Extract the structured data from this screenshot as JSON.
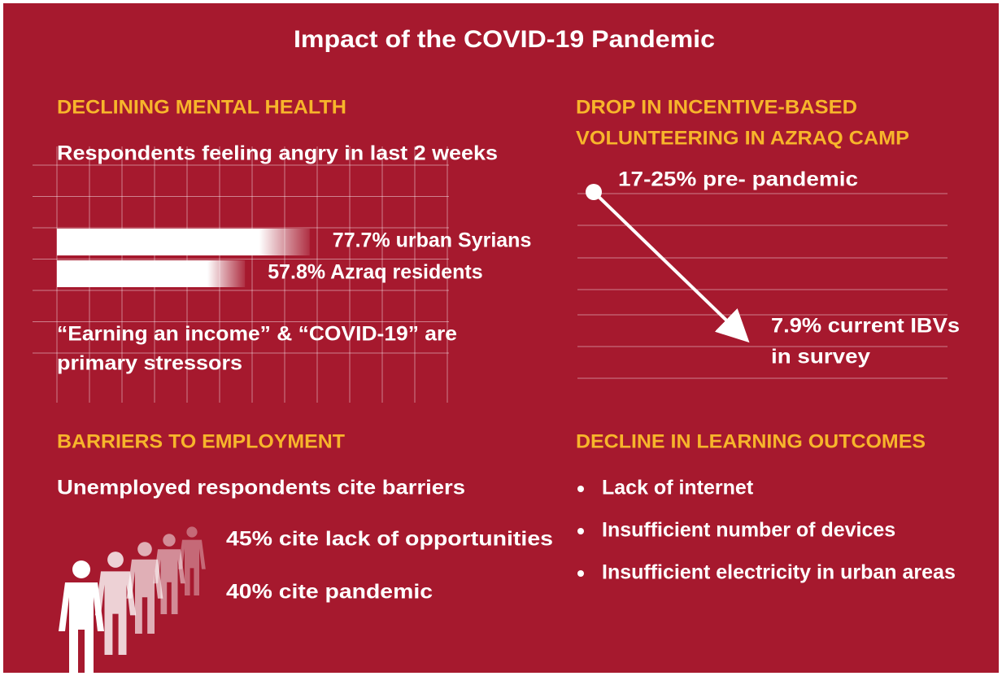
{
  "title": "Impact of the COVID-19 Pandemic",
  "mental_health": {
    "heading": "DECLINING MENTAL HEALTH",
    "subheading": "Respondents feeling angry in last 2 weeks",
    "bars": [
      {
        "value": 77.7,
        "label": "77.7% urban Syrians"
      },
      {
        "value": 57.8,
        "label": "57.8% Azraq residents"
      }
    ],
    "note_lines": [
      "“Earning an income” & “COVID-19” are",
      "primary stressors"
    ]
  },
  "volunteering": {
    "heading_lines": [
      "DROP IN INCENTIVE-BASED",
      "VOLUNTEERING IN AZRAQ CAMP"
    ],
    "start": "17-25% pre- pandemic",
    "end_lines": [
      "7.9% current IBVs",
      "in survey"
    ]
  },
  "employment": {
    "heading": "BARRIERS TO EMPLOYMENT",
    "subheading": "Unemployed respondents cite barriers",
    "items": [
      "45% cite lack of opportunities",
      "40% cite pandemic"
    ]
  },
  "learning": {
    "heading": "DECLINE IN LEARNING OUTCOMES",
    "bullets": [
      "Lack of internet",
      "Insufficient number of devices",
      "Insufficient electricity in urban areas"
    ]
  }
}
